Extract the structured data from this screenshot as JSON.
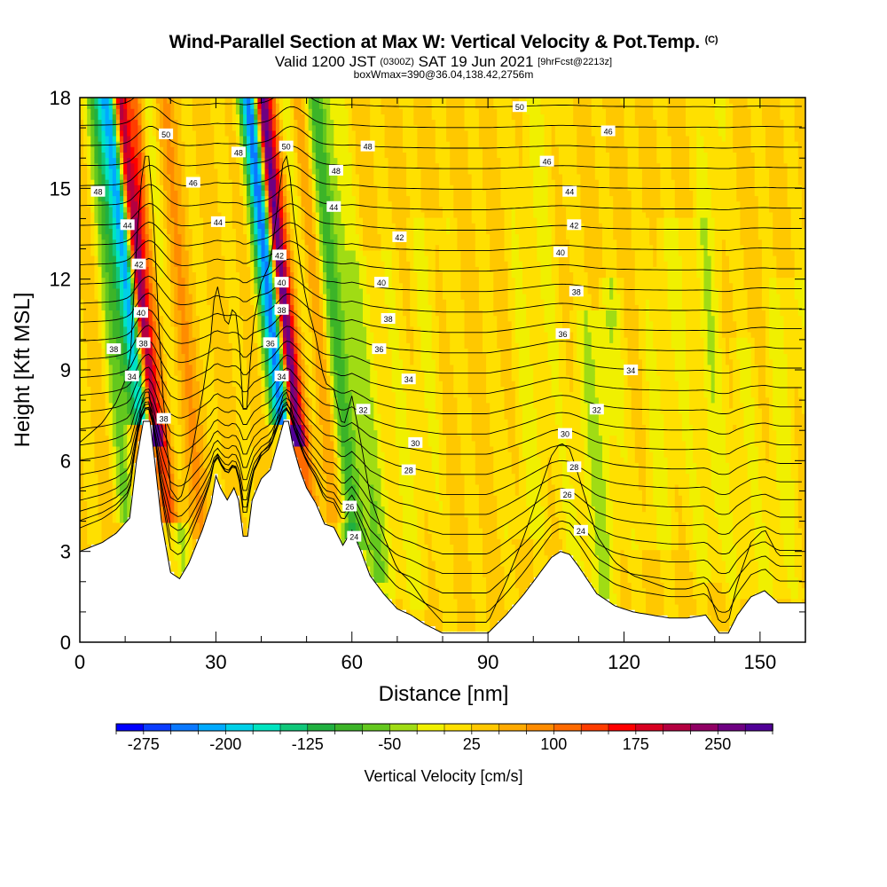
{
  "header": {
    "title": "Wind-Parallel Section at Max W: Vertical Velocity & Pot.Temp.",
    "copyright_mark": "(C)",
    "valid_prefix": "Valid 1200 JST",
    "valid_utc": "(0300Z)",
    "valid_date": "SAT 19 Jun 2021",
    "forecast_note": "[9hrFcst@2213z]",
    "box_info": "boxWmax=390@36.04,138.42,2756m"
  },
  "chart_data": {
    "type": "heatmap",
    "xlabel": "Distance [nm]",
    "ylabel": "Height [Kft MSL]",
    "xlim": [
      0,
      160
    ],
    "ylim": [
      0,
      18
    ],
    "x_ticks": [
      0,
      30,
      60,
      90,
      120,
      150
    ],
    "y_ticks": [
      0,
      3,
      6,
      9,
      12,
      15,
      18
    ],
    "colorbar": {
      "label": "Vertical Velocity [cm/s]",
      "tick_labels": [
        "-275",
        "-200",
        "-125",
        "-50",
        "25",
        "100",
        "175",
        "250"
      ],
      "range": [
        -300,
        300
      ],
      "colors": [
        "#0000ff",
        "#0a3cff",
        "#0a78ff",
        "#00aaff",
        "#00d0e8",
        "#00e4c0",
        "#10c87a",
        "#20b040",
        "#3cb428",
        "#64c81e",
        "#a0dc14",
        "#f0f000",
        "#ffe000",
        "#ffc800",
        "#ffaa00",
        "#ff8c00",
        "#ff6a00",
        "#ff3c00",
        "#ff0000",
        "#d80020",
        "#b40040",
        "#900064",
        "#6e0082",
        "#500096"
      ]
    },
    "terrain_kft": [
      [
        0,
        3.0
      ],
      [
        5,
        3.3
      ],
      [
        8,
        3.6
      ],
      [
        11,
        4.1
      ],
      [
        12.5,
        6.0
      ],
      [
        14,
        7.3
      ],
      [
        15.5,
        7.3
      ],
      [
        16.5,
        6.0
      ],
      [
        18,
        4.0
      ],
      [
        20,
        2.3
      ],
      [
        22,
        2.1
      ],
      [
        24,
        2.6
      ],
      [
        27,
        3.7
      ],
      [
        29,
        4.6
      ],
      [
        30,
        5.5
      ],
      [
        31,
        5.1
      ],
      [
        32.5,
        4.7
      ],
      [
        34,
        5.1
      ],
      [
        35,
        4.7
      ],
      [
        36,
        3.5
      ],
      [
        37,
        3.5
      ],
      [
        38,
        4.7
      ],
      [
        40,
        5.4
      ],
      [
        42,
        5.7
      ],
      [
        43.5,
        6.5
      ],
      [
        45,
        7.3
      ],
      [
        46,
        7.3
      ],
      [
        47,
        6.5
      ],
      [
        48.5,
        5.7
      ],
      [
        50,
        5.1
      ],
      [
        52,
        4.6
      ],
      [
        54,
        3.9
      ],
      [
        56,
        3.8
      ],
      [
        58,
        3.2
      ],
      [
        60,
        3.7
      ],
      [
        62,
        3.0
      ],
      [
        64,
        2.2
      ],
      [
        67,
        1.6
      ],
      [
        70,
        1.1
      ],
      [
        73,
        0.9
      ],
      [
        76,
        0.6
      ],
      [
        80,
        0.3
      ],
      [
        86,
        0.3
      ],
      [
        90,
        0.3
      ],
      [
        94,
        0.9
      ],
      [
        98,
        1.6
      ],
      [
        101,
        2.2
      ],
      [
        104,
        2.8
      ],
      [
        106,
        3.0
      ],
      [
        108,
        2.9
      ],
      [
        110,
        2.5
      ],
      [
        114,
        1.6
      ],
      [
        118,
        1.2
      ],
      [
        122,
        1.0
      ],
      [
        126,
        0.9
      ],
      [
        130,
        0.8
      ],
      [
        134,
        0.8
      ],
      [
        138,
        0.9
      ],
      [
        141,
        0.3
      ],
      [
        143,
        0.3
      ],
      [
        145,
        0.9
      ],
      [
        148,
        1.5
      ],
      [
        151,
        1.7
      ],
      [
        154,
        1.3
      ],
      [
        158,
        1.3
      ],
      [
        160,
        1.3
      ]
    ],
    "w_features": [
      {
        "x0": 14.5,
        "dir": -0.7,
        "w": 3.0,
        "amp": -300,
        "zmin": 7.2,
        "zmax": 18
      },
      {
        "x0": 16.2,
        "dir": -0.7,
        "w": 1.6,
        "amp": 300,
        "zmin": 6.5,
        "zmax": 18
      },
      {
        "x0": 18.0,
        "dir": -0.7,
        "w": 3.0,
        "amp": 120,
        "zmin": 4.0,
        "zmax": 18
      },
      {
        "x0": 20.5,
        "dir": -0.55,
        "w": 2.5,
        "amp": -90,
        "zmin": 2.0,
        "zmax": 18
      },
      {
        "x0": 23.0,
        "dir": -0.55,
        "w": 3.0,
        "amp": 60,
        "zmin": 2.0,
        "zmax": 18
      },
      {
        "x0": 9.0,
        "dir": -0.5,
        "w": 2.5,
        "amp": -70,
        "zmin": 4.0,
        "zmax": 18
      },
      {
        "x0": 45.5,
        "dir": -0.7,
        "w": 2.8,
        "amp": -300,
        "zmin": 7.2,
        "zmax": 18
      },
      {
        "x0": 47.5,
        "dir": -0.7,
        "w": 1.6,
        "amp": 300,
        "zmin": 6.5,
        "zmax": 18
      },
      {
        "x0": 49.5,
        "dir": -0.7,
        "w": 3.0,
        "amp": 120,
        "zmin": 4.0,
        "zmax": 18
      },
      {
        "x0": 52.0,
        "dir": -0.6,
        "w": 2.5,
        "amp": -90,
        "zmin": 4.0,
        "zmax": 18
      },
      {
        "x0": 55.0,
        "dir": -0.6,
        "w": 3.0,
        "amp": 70,
        "zmin": 4.0,
        "zmax": 18
      },
      {
        "x0": 58.0,
        "dir": -0.6,
        "w": 2.5,
        "amp": -110,
        "zmin": 3.0,
        "zmax": 18
      },
      {
        "x0": 61.5,
        "dir": -0.6,
        "w": 3.0,
        "amp": -60,
        "zmin": 2.0,
        "zmax": 18
      },
      {
        "x0": 66.0,
        "dir": -0.3,
        "w": 4.0,
        "amp": -30,
        "zmin": 1.5,
        "zmax": 13
      },
      {
        "x0": 75.0,
        "dir": 0.2,
        "w": 6.0,
        "amp": -25,
        "zmin": 1.0,
        "zmax": 14
      },
      {
        "x0": 100.0,
        "dir": 0.1,
        "w": 6.0,
        "amp": -30,
        "zmin": 3.5,
        "zmax": 18
      },
      {
        "x0": 112.0,
        "dir": 0.1,
        "w": 4.0,
        "amp": -40,
        "zmin": 1.0,
        "zmax": 11
      },
      {
        "x0": 116.5,
        "dir": 0.0,
        "w": 3.0,
        "amp": -40,
        "zmin": 1.0,
        "zmax": 12
      },
      {
        "x0": 129.0,
        "dir": 0.3,
        "w": 6.0,
        "amp": -30,
        "zmin": 3.0,
        "zmax": 14
      },
      {
        "x0": 139.0,
        "dir": 0.0,
        "w": 3.0,
        "amp": -40,
        "zmin": 2.0,
        "zmax": 18
      },
      {
        "x0": 146.0,
        "dir": 0.0,
        "w": 4.0,
        "amp": -25,
        "zmin": 1.5,
        "zmax": 10
      },
      {
        "x0": 155.0,
        "dir": 0.2,
        "w": 4.0,
        "amp": -35,
        "zmin": 1.5,
        "zmax": 12
      },
      {
        "x0": 13.0,
        "dir": 0.0,
        "w": 1.5,
        "amp": 40,
        "zmin": 0.0,
        "zmax": 18
      }
    ],
    "theta_labels": [
      {
        "text": "50",
        "x": 19,
        "y": 16.8
      },
      {
        "text": "48",
        "x": 4,
        "y": 14.9
      },
      {
        "text": "48",
        "x": 35,
        "y": 16.2
      },
      {
        "text": "46",
        "x": 25,
        "y": 15.2
      },
      {
        "text": "44",
        "x": 10.5,
        "y": 13.8
      },
      {
        "text": "44",
        "x": 30.5,
        "y": 13.9
      },
      {
        "text": "42",
        "x": 13,
        "y": 12.5
      },
      {
        "text": "40",
        "x": 13.5,
        "y": 10.9
      },
      {
        "text": "38",
        "x": 14,
        "y": 9.9
      },
      {
        "text": "38",
        "x": 7.5,
        "y": 9.7
      },
      {
        "text": "34",
        "x": 11.5,
        "y": 8.8
      },
      {
        "text": "38",
        "x": 18.5,
        "y": 7.4
      },
      {
        "text": "50",
        "x": 45.5,
        "y": 16.4
      },
      {
        "text": "48",
        "x": 56.5,
        "y": 15.6
      },
      {
        "text": "48",
        "x": 63.5,
        "y": 16.4
      },
      {
        "text": "44",
        "x": 56,
        "y": 14.4
      },
      {
        "text": "42",
        "x": 44,
        "y": 12.8
      },
      {
        "text": "40",
        "x": 44.5,
        "y": 11.9
      },
      {
        "text": "38",
        "x": 44.5,
        "y": 11.0
      },
      {
        "text": "36",
        "x": 42,
        "y": 9.9
      },
      {
        "text": "34",
        "x": 44.5,
        "y": 8.8
      },
      {
        "text": "42",
        "x": 70.5,
        "y": 13.4
      },
      {
        "text": "40",
        "x": 66.5,
        "y": 11.9
      },
      {
        "text": "38",
        "x": 68,
        "y": 10.7
      },
      {
        "text": "36",
        "x": 66,
        "y": 9.7
      },
      {
        "text": "34",
        "x": 72.5,
        "y": 8.7
      },
      {
        "text": "32",
        "x": 62.5,
        "y": 7.7
      },
      {
        "text": "30",
        "x": 74,
        "y": 6.6
      },
      {
        "text": "28",
        "x": 72.5,
        "y": 5.7
      },
      {
        "text": "26",
        "x": 59.5,
        "y": 4.5
      },
      {
        "text": "24",
        "x": 60.5,
        "y": 3.5
      },
      {
        "text": "50",
        "x": 97,
        "y": 17.7
      },
      {
        "text": "46",
        "x": 116.5,
        "y": 16.9
      },
      {
        "text": "46",
        "x": 103,
        "y": 15.9
      },
      {
        "text": "44",
        "x": 108,
        "y": 14.9
      },
      {
        "text": "42",
        "x": 109,
        "y": 13.8
      },
      {
        "text": "40",
        "x": 106,
        "y": 12.9
      },
      {
        "text": "38",
        "x": 109.5,
        "y": 11.6
      },
      {
        "text": "36",
        "x": 106.5,
        "y": 10.2
      },
      {
        "text": "34",
        "x": 121.5,
        "y": 9.0
      },
      {
        "text": "32",
        "x": 114,
        "y": 7.7
      },
      {
        "text": "30",
        "x": 107,
        "y": 6.9
      },
      {
        "text": "28",
        "x": 109,
        "y": 5.8
      },
      {
        "text": "26",
        "x": 107.5,
        "y": 4.9
      },
      {
        "text": "24",
        "x": 110.5,
        "y": 3.7
      }
    ]
  }
}
